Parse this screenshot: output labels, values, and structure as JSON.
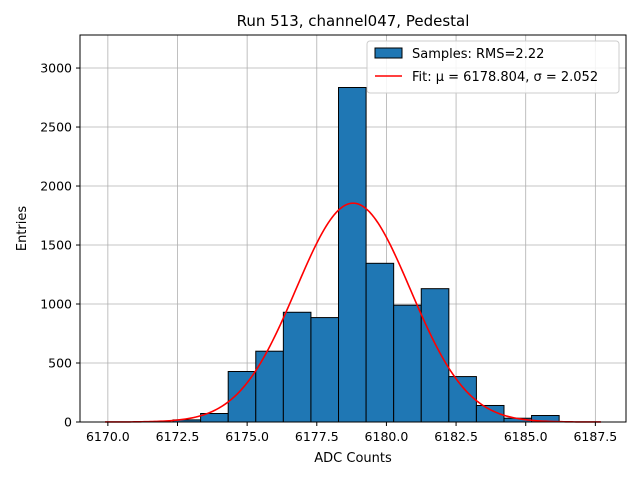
{
  "chart_data": {
    "type": "bar",
    "title": "Run 513, channel047, Pedestal",
    "xlabel": "ADC Counts",
    "ylabel": "Entries",
    "xlim": [
      6169.0,
      6188.6
    ],
    "ylim": [
      0,
      3280
    ],
    "x_ticks": [
      6170.0,
      6172.5,
      6175.0,
      6177.5,
      6180.0,
      6182.5,
      6185.0,
      6187.5
    ],
    "x_tick_labels": [
      "6170.0",
      "6172.5",
      "6175.0",
      "6177.5",
      "6180.0",
      "6182.5",
      "6185.0",
      "6187.5"
    ],
    "y_ticks": [
      0,
      500,
      1000,
      1500,
      2000,
      2500,
      3000
    ],
    "y_tick_labels": [
      "0",
      "500",
      "1000",
      "1500",
      "2000",
      "2500",
      "3000"
    ],
    "grid": true,
    "legend_position": "top-right",
    "histogram": {
      "name": "Samples: RMS=2.22",
      "color": "#1f77b4",
      "edge_color": "#000000",
      "bins": [
        {
          "x0": 6172.34,
          "x1": 6173.33,
          "count": 18
        },
        {
          "x0": 6173.33,
          "x1": 6174.32,
          "count": 72
        },
        {
          "x0": 6174.32,
          "x1": 6175.31,
          "count": 428
        },
        {
          "x0": 6175.31,
          "x1": 6176.3,
          "count": 600
        },
        {
          "x0": 6176.3,
          "x1": 6177.29,
          "count": 930
        },
        {
          "x0": 6177.29,
          "x1": 6178.28,
          "count": 885
        },
        {
          "x0": 6178.28,
          "x1": 6179.27,
          "count": 2835
        },
        {
          "x0": 6179.27,
          "x1": 6180.26,
          "count": 1345
        },
        {
          "x0": 6180.26,
          "x1": 6181.25,
          "count": 990
        },
        {
          "x0": 6181.25,
          "x1": 6182.24,
          "count": 1130
        },
        {
          "x0": 6182.24,
          "x1": 6183.23,
          "count": 385
        },
        {
          "x0": 6183.23,
          "x1": 6184.22,
          "count": 140
        },
        {
          "x0": 6184.22,
          "x1": 6185.21,
          "count": 32
        },
        {
          "x0": 6185.21,
          "x1": 6186.2,
          "count": 55
        }
      ]
    },
    "fit": {
      "name": "Fit: μ = 6178.804, σ = 2.052",
      "color": "#ff0000",
      "mu": 6178.804,
      "sigma": 2.052,
      "amplitude": 1855,
      "x_range": [
        6169.9,
        6187.7
      ]
    }
  }
}
